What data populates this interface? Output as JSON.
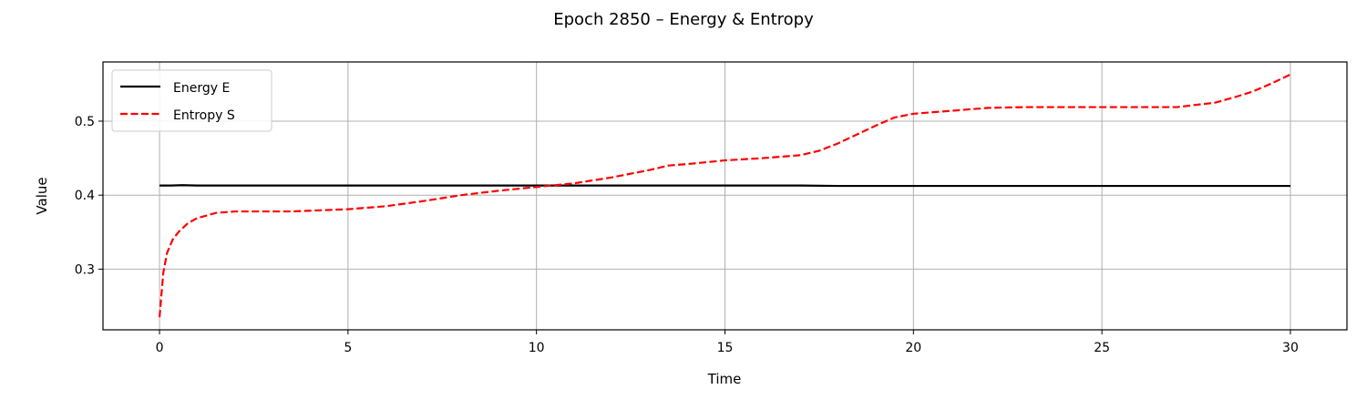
{
  "chart_data": {
    "type": "line",
    "title": "Epoch 2850 – Energy & Entropy",
    "xlabel": "Time",
    "ylabel": "Value",
    "xlim": [
      -1.5,
      31.5
    ],
    "ylim": [
      0.218,
      0.58
    ],
    "xticks": [
      0,
      5,
      10,
      15,
      20,
      25,
      30
    ],
    "xtick_labels": [
      "0",
      "5",
      "10",
      "15",
      "20",
      "25",
      "30"
    ],
    "yticks": [
      0.3,
      0.4,
      0.5
    ],
    "ytick_labels": [
      "0.3",
      "0.4",
      "0.5"
    ],
    "grid": true,
    "legend_position": "upper-left",
    "series": [
      {
        "name": "Energy E",
        "color": "#000000",
        "style": "solid",
        "x": [
          0,
          0.3,
          0.6,
          1,
          3,
          5,
          8,
          10,
          12,
          15,
          17,
          18,
          20,
          22,
          25,
          28,
          30
        ],
        "y": [
          0.413,
          0.413,
          0.4135,
          0.413,
          0.413,
          0.413,
          0.413,
          0.413,
          0.413,
          0.413,
          0.413,
          0.4125,
          0.4125,
          0.4125,
          0.4125,
          0.4125,
          0.4125
        ]
      },
      {
        "name": "Entropy S",
        "color": "#ff0000",
        "style": "dashed",
        "x": [
          0,
          0.1,
          0.2,
          0.35,
          0.5,
          0.75,
          1,
          1.5,
          2,
          2.5,
          3,
          3.5,
          4,
          5,
          6,
          7,
          8,
          9,
          10,
          11,
          12,
          13,
          13.5,
          14,
          15,
          16,
          17,
          17.5,
          18,
          18.5,
          19,
          19.5,
          20,
          21,
          22,
          23,
          24,
          25,
          26,
          27,
          28,
          28.5,
          29,
          29.5,
          30
        ],
        "y": [
          0.235,
          0.295,
          0.322,
          0.34,
          0.35,
          0.362,
          0.369,
          0.376,
          0.378,
          0.378,
          0.378,
          0.378,
          0.379,
          0.381,
          0.385,
          0.392,
          0.4,
          0.406,
          0.411,
          0.416,
          0.424,
          0.434,
          0.44,
          0.442,
          0.447,
          0.45,
          0.454,
          0.46,
          0.47,
          0.482,
          0.494,
          0.505,
          0.51,
          0.514,
          0.518,
          0.519,
          0.519,
          0.519,
          0.519,
          0.519,
          0.525,
          0.532,
          0.54,
          0.551,
          0.563
        ]
      }
    ]
  }
}
